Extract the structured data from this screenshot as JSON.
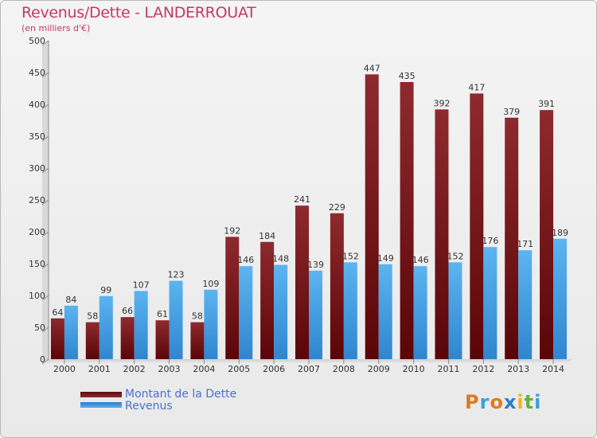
{
  "title": "Revenus/Dette - LANDERROUAT",
  "subtitle": "(en milliers d'€)",
  "logo": "Proxiti",
  "colors": {
    "dette": "#7a1a1d",
    "revenus": "#3a97de",
    "title": "#c33a63",
    "legend_text": "#4a6fd3"
  },
  "legend": [
    {
      "label": "Montant de la Dette",
      "color": "#7a1a1d"
    },
    {
      "label": "Revenus",
      "color": "#3a97de"
    }
  ],
  "chart_data": {
    "type": "bar",
    "categories": [
      "2000",
      "2001",
      "2002",
      "2003",
      "2004",
      "2005",
      "2006",
      "2007",
      "2008",
      "2009",
      "2010",
      "2011",
      "2012",
      "2013",
      "2014"
    ],
    "series": [
      {
        "name": "Montant de la Dette",
        "values": [
          64,
          58,
          66,
          61,
          58,
          192,
          184,
          241,
          229,
          447,
          435,
          392,
          417,
          379,
          391
        ]
      },
      {
        "name": "Revenus",
        "values": [
          84,
          99,
          107,
          123,
          109,
          146,
          148,
          139,
          152,
          149,
          146,
          152,
          176,
          171,
          189
        ]
      }
    ],
    "ylim": [
      0,
      500
    ],
    "yticks": [
      0,
      50,
      100,
      150,
      200,
      250,
      300,
      350,
      400,
      450,
      500
    ],
    "grid": false,
    "legend_position": "bottom-left"
  }
}
